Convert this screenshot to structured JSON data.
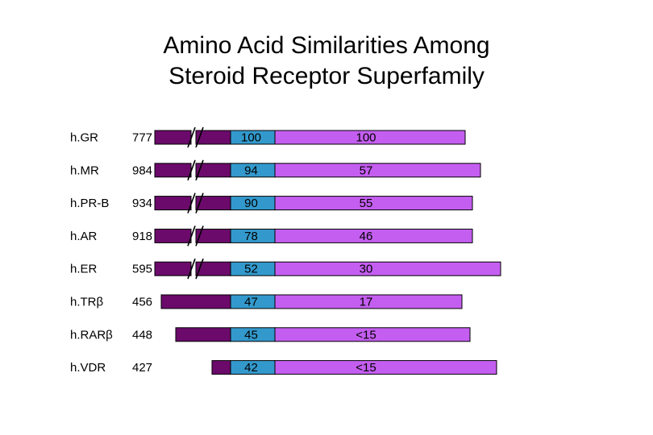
{
  "title": {
    "line1": "Amino Acid Similarities Among",
    "line2": "Steroid Receptor Superfamily"
  },
  "colors": {
    "n_terminal": "#6b0a6b",
    "dna_binding": "#3399cc",
    "ligand_binding": "#c45ef0",
    "outline": "#000000"
  },
  "receptors": [
    {
      "name": "h.GR",
      "length": "777",
      "dna_similarity": "100",
      "ligand_similarity": "100",
      "break": true
    },
    {
      "name": "h.MR",
      "length": "984",
      "dna_similarity": "94",
      "ligand_similarity": "57",
      "break": true
    },
    {
      "name": "h.PR-B",
      "length": "934",
      "dna_similarity": "90",
      "ligand_similarity": "55",
      "break": true
    },
    {
      "name": "h.AR",
      "length": "918",
      "dna_similarity": "78",
      "ligand_similarity": "46",
      "break": true
    },
    {
      "name": "h.ER",
      "length": "595",
      "dna_similarity": "52",
      "ligand_similarity": "30",
      "break": true
    },
    {
      "name": "h.TRβ",
      "length": "456",
      "dna_similarity": "47",
      "ligand_similarity": "17",
      "break": false
    },
    {
      "name": "h.RARβ",
      "length": "448",
      "dna_similarity": "45",
      "ligand_similarity": "<15",
      "break": false
    },
    {
      "name": "h.VDR",
      "length": "427",
      "dna_similarity": "42",
      "ligand_similarity": "<15",
      "break": false
    }
  ]
}
